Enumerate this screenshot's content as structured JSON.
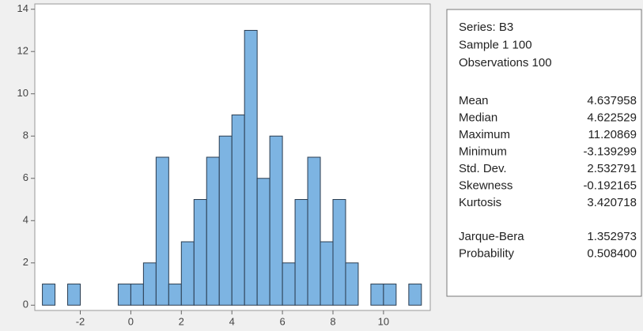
{
  "chart_data": {
    "type": "histogram",
    "bins": [
      -3.5,
      -3,
      -2.5,
      -2,
      -1.5,
      -1,
      -0.5,
      0,
      0.5,
      1,
      1.5,
      2,
      2.5,
      3,
      3.5,
      4,
      4.5,
      5,
      5.5,
      6,
      6.5,
      7,
      7.5,
      8,
      8.5,
      9,
      9.5,
      10,
      10.5,
      11,
      11.5
    ],
    "values": [
      1,
      0,
      1,
      0,
      0,
      0,
      1,
      1,
      2,
      7,
      1,
      3,
      5,
      7,
      8,
      9,
      13,
      6,
      8,
      2,
      5,
      7,
      3,
      5,
      2,
      0,
      1,
      1,
      0,
      1
    ],
    "color": "#7db4e2",
    "xlim": [
      -3.8,
      11.85
    ],
    "xticks": [
      -2,
      0,
      2,
      4,
      6,
      8,
      10
    ],
    "ylim": [
      -0.25,
      14.25
    ],
    "yticks": [
      0,
      2,
      4,
      6,
      8,
      10,
      12,
      14
    ],
    "grid": false,
    "stats_header": [
      "Series: B3",
      "Sample 1 100",
      "Observations 100"
    ],
    "stats": [
      {
        "label": "Mean",
        "value": "4.637958"
      },
      {
        "label": "Median",
        "value": "4.622529"
      },
      {
        "label": "Maximum",
        "value": "11.20869"
      },
      {
        "label": "Minimum",
        "value": "-3.139299"
      },
      {
        "label": "Std. Dev.",
        "value": "2.532791"
      },
      {
        "label": "Skewness",
        "value": "-0.192165"
      },
      {
        "label": "Kurtosis",
        "value": "3.420718"
      }
    ],
    "tests": [
      {
        "label": "Jarque-Bera",
        "value": "1.352973"
      },
      {
        "label": "Probability",
        "value": "0.508400"
      }
    ]
  }
}
